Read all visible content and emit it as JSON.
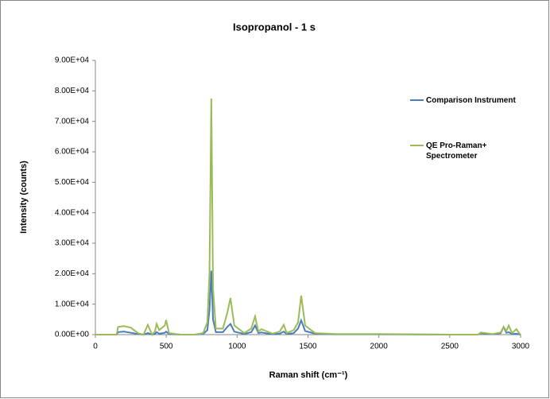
{
  "chart_data": {
    "type": "line",
    "title": "Isopropanol - 1 s",
    "x_label": "Raman shift (cm⁻¹)",
    "y_label": "Intensity (counts)",
    "x": [
      0,
      100,
      150,
      160,
      200,
      250,
      300,
      340,
      370,
      400,
      420,
      432,
      450,
      490,
      499,
      520,
      600,
      700,
      760,
      790,
      805,
      818,
      830,
      850,
      900,
      930,
      953,
      980,
      1050,
      1100,
      1127,
      1150,
      1170,
      1250,
      1300,
      1329,
      1350,
      1400,
      1430,
      1452,
      1480,
      1550,
      1700,
      2000,
      2500,
      2700,
      2720,
      2800,
      2860,
      2880,
      2900,
      2916,
      2940,
      2970,
      2990,
      3000
    ],
    "series": [
      {
        "name": "Comparison Instrument",
        "color": "#4a7ebb",
        "values": [
          0,
          0,
          0,
          800,
          1000,
          600,
          200,
          0,
          500,
          0,
          200,
          800,
          300,
          600,
          1000,
          200,
          0,
          0,
          200,
          1500,
          8000,
          21000,
          5000,
          800,
          800,
          2500,
          3500,
          1000,
          200,
          800,
          3000,
          500,
          700,
          100,
          300,
          1000,
          200,
          500,
          2000,
          4700,
          1200,
          300,
          100,
          100,
          0,
          0,
          500,
          100,
          500,
          2500,
          600,
          800,
          200,
          300,
          100,
          0
        ]
      },
      {
        "name": "QE Pro-Raman+ Spectrometer",
        "color": "#9bbb59",
        "values": [
          0,
          0,
          0,
          2500,
          2800,
          2300,
          500,
          0,
          3200,
          0,
          1000,
          3500,
          1500,
          3000,
          4800,
          500,
          0,
          0,
          500,
          4000,
          20000,
          77500,
          15000,
          2000,
          2000,
          7000,
          12000,
          3000,
          500,
          2000,
          6000,
          1000,
          1800,
          300,
          1000,
          3200,
          500,
          1500,
          4000,
          12800,
          3000,
          500,
          200,
          200,
          0,
          0,
          700,
          200,
          700,
          2500,
          1200,
          3000,
          500,
          1800,
          500,
          0
        ]
      }
    ],
    "xlim": [
      0,
      3000
    ],
    "xticks": [
      0,
      500,
      1000,
      1500,
      2000,
      2500,
      3000
    ],
    "ylim": [
      0,
      90000
    ],
    "yticks": [
      {
        "value": 0,
        "label": "0.00E+00"
      },
      {
        "value": 10000,
        "label": "1.00E+04"
      },
      {
        "value": 20000,
        "label": "2.00E+04"
      },
      {
        "value": 30000,
        "label": "3.00E+04"
      },
      {
        "value": 40000,
        "label": "4.00E+04"
      },
      {
        "value": 50000,
        "label": "5.00E+04"
      },
      {
        "value": 60000,
        "label": "6.00E+04"
      },
      {
        "value": 70000,
        "label": "7.00E+04"
      },
      {
        "value": 80000,
        "label": "8.00E+04"
      },
      {
        "value": 90000,
        "label": "9.00E+04"
      }
    ],
    "grid": false,
    "legend": "right"
  }
}
